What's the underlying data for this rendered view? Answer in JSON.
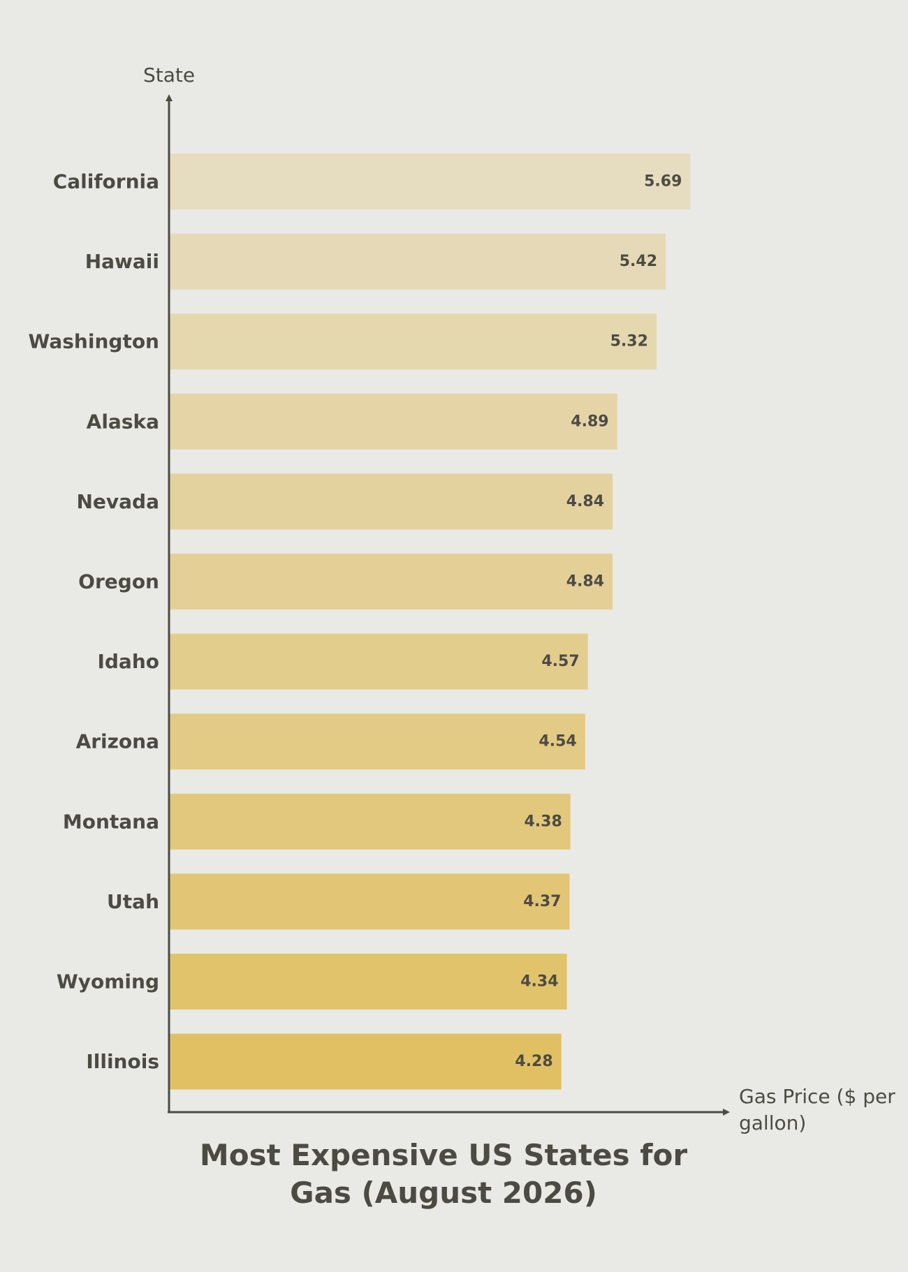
{
  "chart_data": {
    "type": "bar",
    "orientation": "horizontal",
    "title": "Most Expensive US States for Gas (August 2026)",
    "xlabel": "Gas Price ($ per gallon)",
    "ylabel": "State",
    "xlim": [
      0,
      6.5
    ],
    "grid": false,
    "legend": "none",
    "categories": [
      "California",
      "Hawaii",
      "Washington",
      "Alaska",
      "Nevada",
      "Oregon",
      "Idaho",
      "Arizona",
      "Montana",
      "Utah",
      "Wyoming",
      "Illinois"
    ],
    "values": [
      5.69,
      5.42,
      5.32,
      4.89,
      4.84,
      4.84,
      4.57,
      4.54,
      4.38,
      4.37,
      4.34,
      4.28
    ],
    "colors": {
      "bar_light": "#e6dcbf",
      "bar_dark": "#e1c064",
      "axis": "#4c4b43",
      "text": "#4c4b43",
      "background": "#e9eae6"
    }
  }
}
